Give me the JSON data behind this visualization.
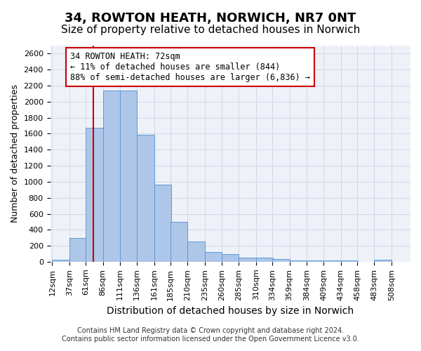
{
  "title": "34, ROWTON HEATH, NORWICH, NR7 0NT",
  "subtitle": "Size of property relative to detached houses in Norwich",
  "xlabel": "Distribution of detached houses by size in Norwich",
  "ylabel": "Number of detached properties",
  "bin_labels": [
    "12sqm",
    "37sqm",
    "61sqm",
    "86sqm",
    "111sqm",
    "136sqm",
    "161sqm",
    "185sqm",
    "210sqm",
    "235sqm",
    "260sqm",
    "285sqm",
    "310sqm",
    "334sqm",
    "359sqm",
    "384sqm",
    "409sqm",
    "434sqm",
    "458sqm",
    "483sqm",
    "508sqm"
  ],
  "bin_edges_numeric": [
    12,
    37,
    61,
    86,
    111,
    136,
    161,
    185,
    210,
    235,
    260,
    285,
    310,
    334,
    359,
    384,
    409,
    434,
    458,
    483,
    508
  ],
  "bar_values": [
    25,
    300,
    1670,
    2140,
    2140,
    1590,
    960,
    500,
    250,
    125,
    100,
    50,
    50,
    35,
    20,
    20,
    20,
    20,
    0,
    25,
    0
  ],
  "bar_color": "#aec6e8",
  "bar_edge_color": "#5b9bd5",
  "grid_color": "#d0d8e8",
  "background_color": "#eef2f8",
  "annotation_line1": "34 ROWTON HEATH: 72sqm",
  "annotation_line2": "← 11% of detached houses are smaller (844)",
  "annotation_line3": "88% of semi-detached houses are larger (6,836) →",
  "annotation_box_color": "#ffffff",
  "annotation_box_edge_color": "#cc0000",
  "red_line_x": 72,
  "red_line_color": "#cc0000",
  "ylim": [
    0,
    2700
  ],
  "yticks": [
    0,
    200,
    400,
    600,
    800,
    1000,
    1200,
    1400,
    1600,
    1800,
    2000,
    2200,
    2400,
    2600
  ],
  "footer_line1": "Contains HM Land Registry data © Crown copyright and database right 2024.",
  "footer_line2": "Contains public sector information licensed under the Open Government Licence v3.0.",
  "title_fontsize": 13,
  "subtitle_fontsize": 11,
  "xlabel_fontsize": 10,
  "ylabel_fontsize": 9,
  "tick_fontsize": 8,
  "annotation_fontsize": 8.5,
  "footer_fontsize": 7
}
